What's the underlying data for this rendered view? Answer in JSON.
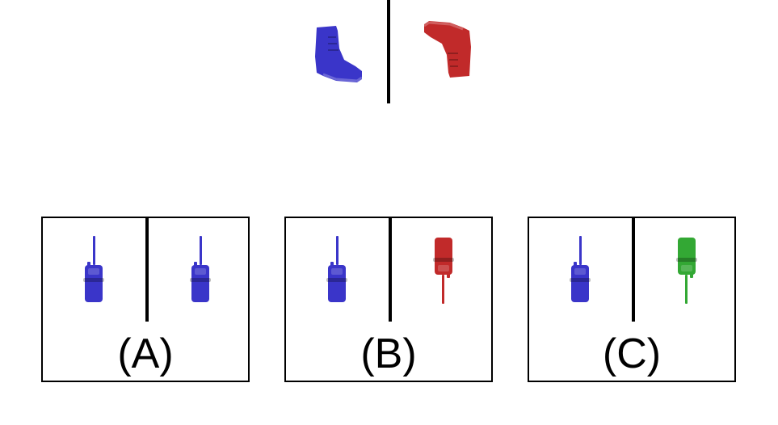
{
  "colors": {
    "blue": "#3a35c9",
    "red": "#c12a2a",
    "green": "#33a834"
  },
  "top_pair": {
    "left_icon": "boot-icon",
    "left_color": "blue",
    "right_icon": "boot-upside-down-icon",
    "right_color": "red"
  },
  "options": [
    {
      "label": "(A)",
      "left_icon": "walkie-talkie-icon",
      "left_color": "blue",
      "right_icon": "walkie-talkie-icon",
      "right_color": "blue"
    },
    {
      "label": "(B)",
      "left_icon": "walkie-talkie-icon",
      "left_color": "blue",
      "right_icon": "walkie-talkie-upside-down-icon",
      "right_color": "red"
    },
    {
      "label": "(C)",
      "left_icon": "walkie-talkie-icon",
      "left_color": "blue",
      "right_icon": "walkie-talkie-upside-down-icon",
      "right_color": "green"
    }
  ]
}
